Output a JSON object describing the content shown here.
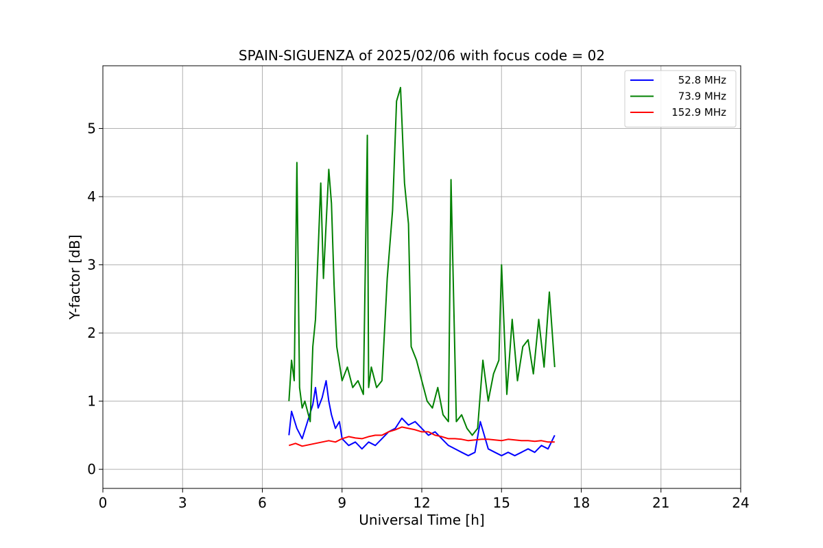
{
  "chart_data": {
    "type": "line",
    "title": "SPAIN-SIGUENZA of 2025/02/06 with focus code = 02",
    "xlabel": "Universal Time [h]",
    "ylabel": "Y-factor [dB]",
    "xlim": [
      0,
      24
    ],
    "ylim": [
      -0.28,
      5.92
    ],
    "xticks": [
      0,
      3,
      6,
      9,
      12,
      15,
      18,
      21,
      24
    ],
    "yticks": [
      0,
      1,
      2,
      3,
      4,
      5
    ],
    "grid": true,
    "legend_position": "top-right",
    "series": [
      {
        "name": "52.8 MHz",
        "color": "#0000ff",
        "x": [
          7.0,
          7.1,
          7.3,
          7.5,
          7.7,
          7.9,
          8.0,
          8.1,
          8.25,
          8.4,
          8.5,
          8.6,
          8.75,
          8.9,
          9.0,
          9.25,
          9.5,
          9.75,
          10.0,
          10.25,
          10.5,
          10.75,
          11.0,
          11.25,
          11.5,
          11.75,
          12.0,
          12.25,
          12.5,
          12.75,
          13.0,
          13.25,
          13.5,
          13.75,
          14.0,
          14.2,
          14.5,
          14.75,
          15.0,
          15.25,
          15.5,
          15.75,
          16.0,
          16.25,
          16.5,
          16.75,
          17.0
        ],
        "y": [
          0.5,
          0.85,
          0.6,
          0.45,
          0.7,
          0.95,
          1.2,
          0.9,
          1.05,
          1.3,
          1.0,
          0.8,
          0.6,
          0.7,
          0.45,
          0.35,
          0.4,
          0.3,
          0.4,
          0.35,
          0.45,
          0.55,
          0.6,
          0.75,
          0.65,
          0.7,
          0.6,
          0.5,
          0.55,
          0.45,
          0.35,
          0.3,
          0.25,
          0.2,
          0.25,
          0.7,
          0.3,
          0.25,
          0.2,
          0.25,
          0.2,
          0.25,
          0.3,
          0.25,
          0.35,
          0.3,
          0.5
        ]
      },
      {
        "name": "73.9 MHz",
        "color": "#008000",
        "x": [
          7.0,
          7.1,
          7.2,
          7.3,
          7.4,
          7.5,
          7.6,
          7.8,
          7.9,
          8.0,
          8.2,
          8.3,
          8.5,
          8.6,
          8.7,
          8.8,
          9.0,
          9.2,
          9.4,
          9.6,
          9.8,
          9.95,
          10.0,
          10.1,
          10.3,
          10.5,
          10.7,
          10.9,
          11.05,
          11.2,
          11.35,
          11.5,
          11.6,
          11.8,
          12.0,
          12.2,
          12.4,
          12.6,
          12.8,
          13.0,
          13.1,
          13.3,
          13.5,
          13.7,
          13.9,
          14.1,
          14.3,
          14.5,
          14.7,
          14.9,
          15.0,
          15.2,
          15.4,
          15.6,
          15.8,
          16.0,
          16.2,
          16.4,
          16.6,
          16.8,
          17.0
        ],
        "y": [
          1.0,
          1.6,
          1.3,
          4.5,
          1.2,
          0.9,
          1.0,
          0.7,
          1.8,
          2.2,
          4.2,
          2.8,
          4.4,
          3.9,
          2.7,
          1.8,
          1.3,
          1.5,
          1.2,
          1.3,
          1.1,
          4.9,
          1.2,
          1.5,
          1.2,
          1.3,
          2.8,
          3.8,
          5.4,
          5.6,
          4.2,
          3.6,
          1.8,
          1.6,
          1.3,
          1.0,
          0.9,
          1.2,
          0.8,
          0.7,
          4.25,
          0.7,
          0.8,
          0.6,
          0.5,
          0.6,
          1.6,
          1.0,
          1.4,
          1.6,
          3.0,
          1.1,
          2.2,
          1.3,
          1.8,
          1.9,
          1.4,
          2.2,
          1.5,
          2.6,
          1.5
        ]
      },
      {
        "name": "152.9 MHz",
        "color": "#ff0000",
        "x": [
          7.0,
          7.25,
          7.5,
          7.75,
          8.0,
          8.25,
          8.5,
          8.75,
          9.0,
          9.25,
          9.5,
          9.75,
          10.0,
          10.25,
          10.5,
          10.75,
          11.0,
          11.25,
          11.5,
          11.75,
          12.0,
          12.25,
          12.5,
          12.75,
          13.0,
          13.25,
          13.5,
          13.75,
          14.0,
          14.25,
          14.5,
          14.75,
          15.0,
          15.25,
          15.5,
          15.75,
          16.0,
          16.25,
          16.5,
          16.75,
          17.0
        ],
        "y": [
          0.35,
          0.38,
          0.34,
          0.36,
          0.38,
          0.4,
          0.42,
          0.4,
          0.45,
          0.48,
          0.46,
          0.45,
          0.48,
          0.5,
          0.5,
          0.55,
          0.58,
          0.62,
          0.6,
          0.58,
          0.55,
          0.55,
          0.5,
          0.48,
          0.45,
          0.45,
          0.44,
          0.42,
          0.43,
          0.44,
          0.44,
          0.43,
          0.42,
          0.44,
          0.43,
          0.42,
          0.42,
          0.41,
          0.42,
          0.4,
          0.4
        ]
      }
    ]
  }
}
